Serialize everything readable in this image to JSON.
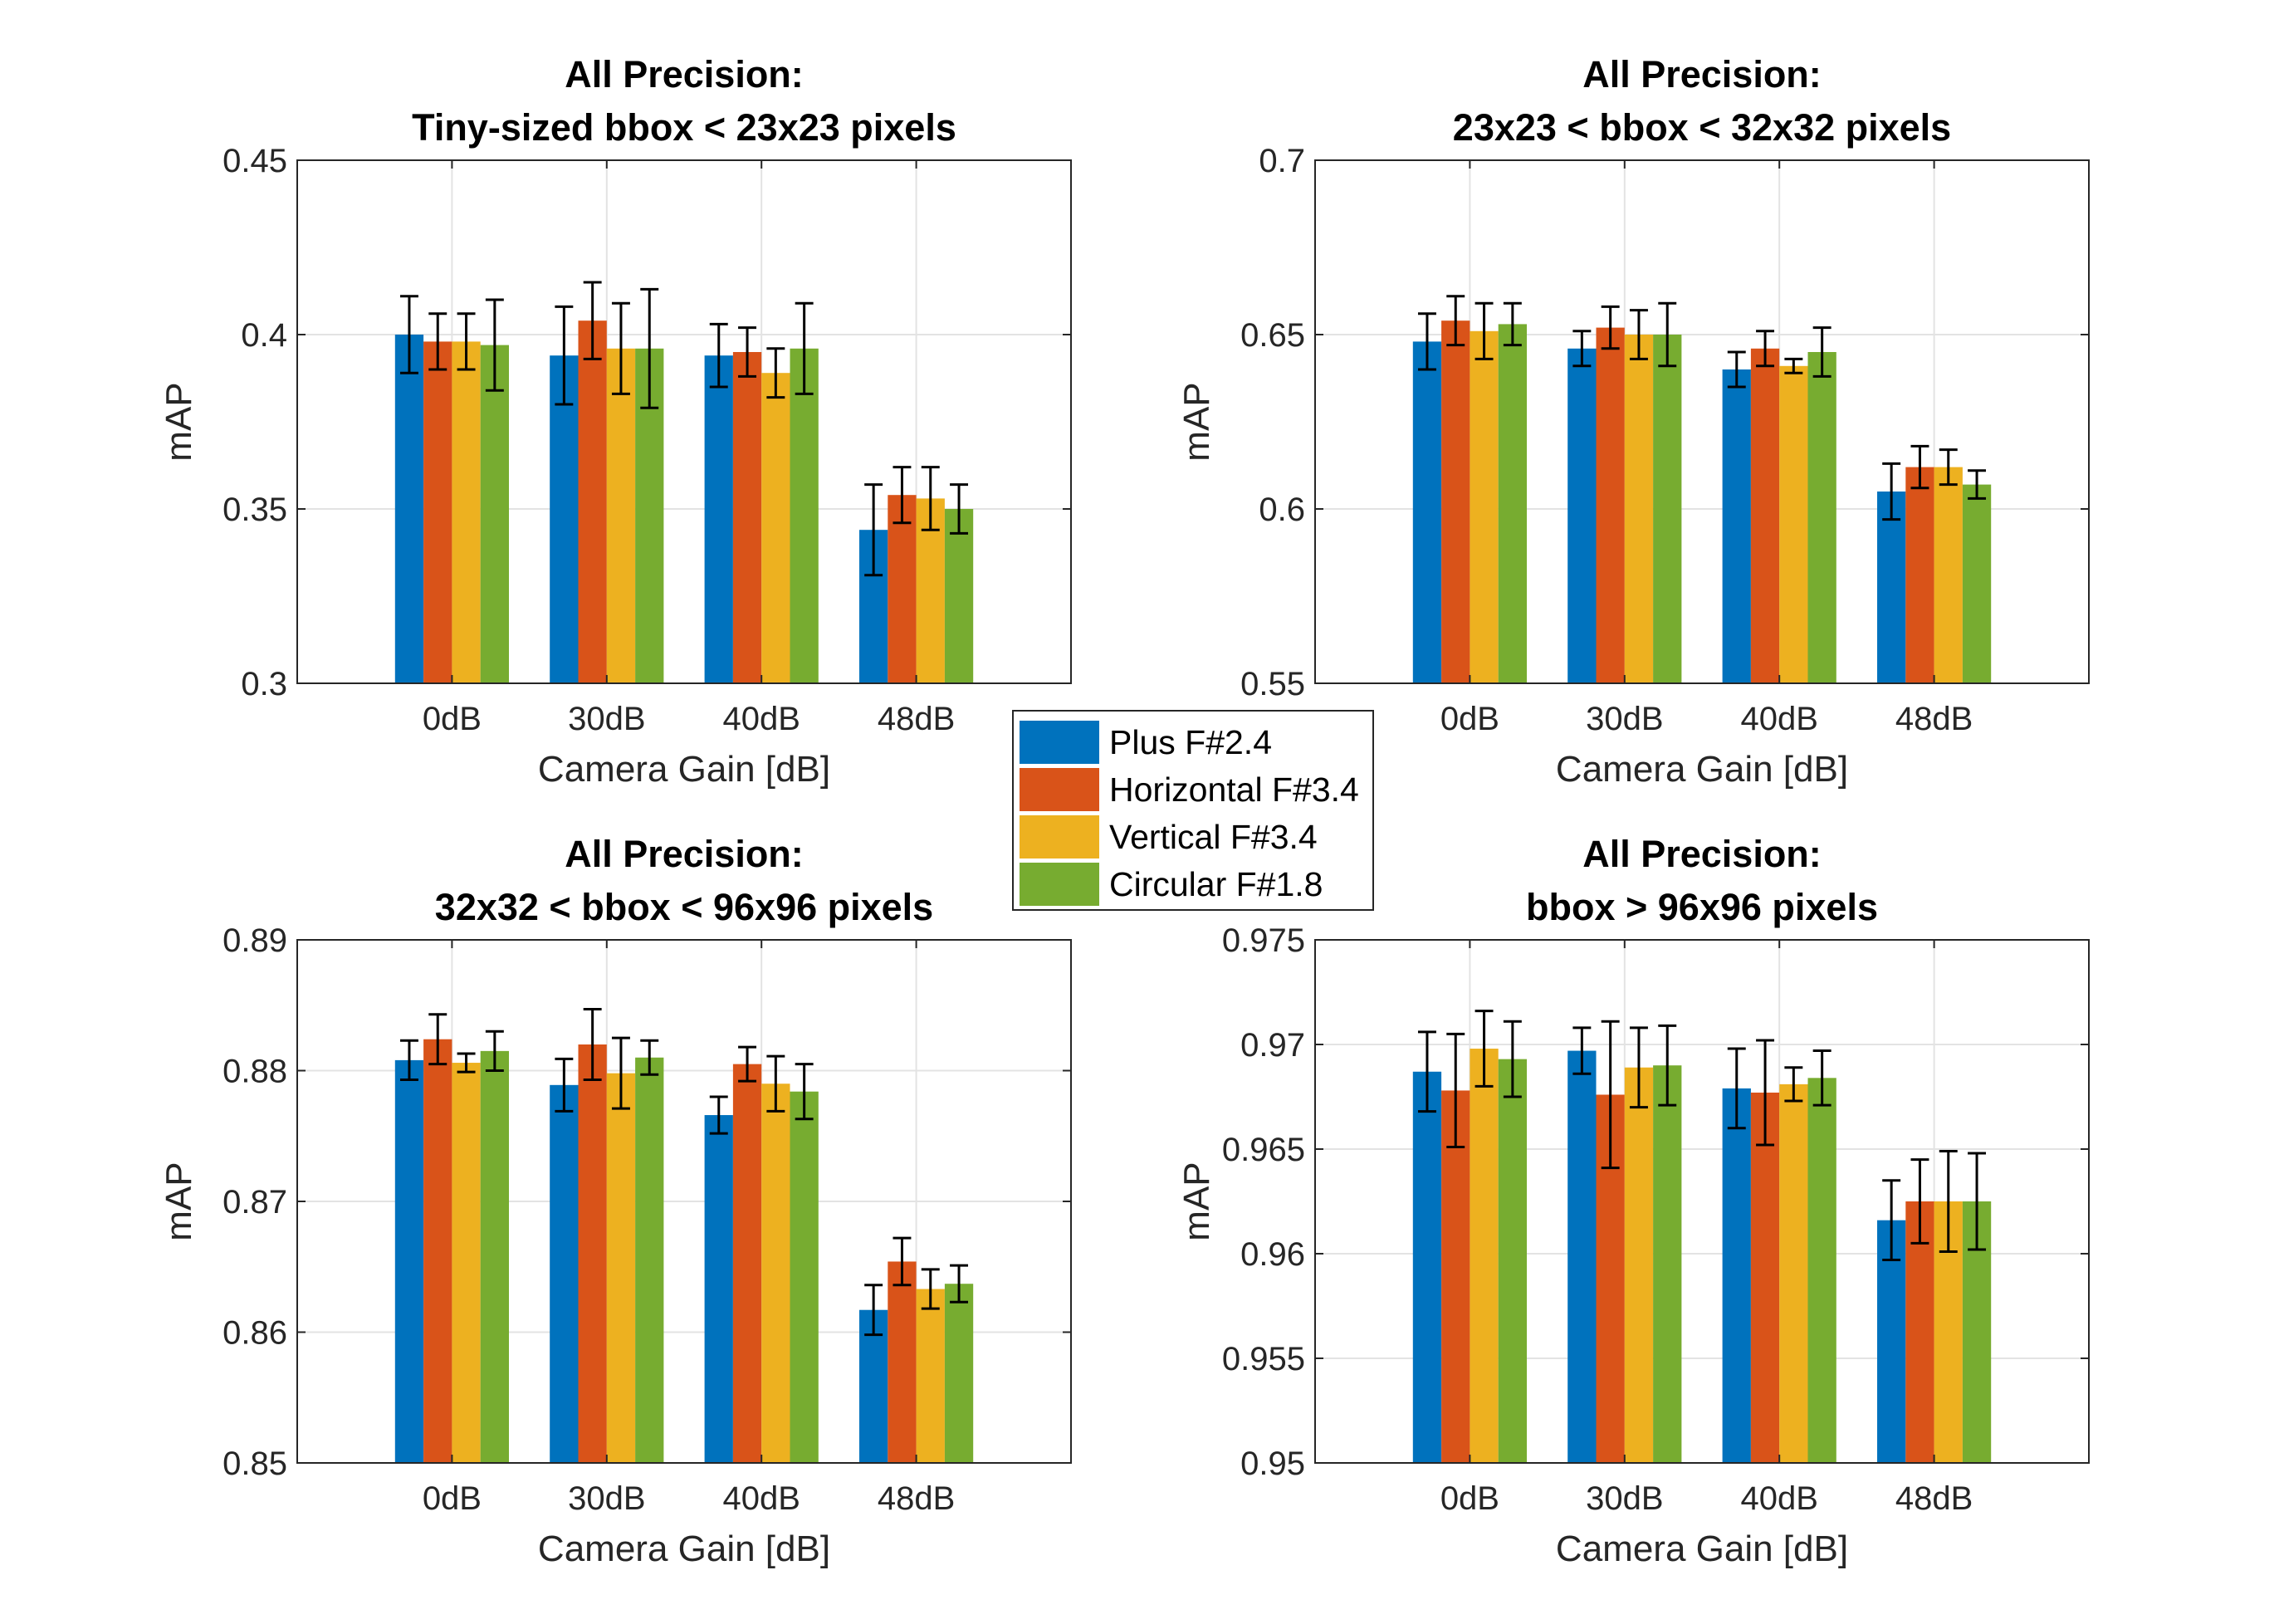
{
  "legend": [
    {
      "name": "Plus F#2.4",
      "color": "#0072BD"
    },
    {
      "name": "Horizontal F#3.4",
      "color": "#D95319"
    },
    {
      "name": "Vertical F#3.4",
      "color": "#EDB120"
    },
    {
      "name": "Circular F#1.8",
      "color": "#77AC30"
    }
  ],
  "chart_data": [
    {
      "type": "bar",
      "title": [
        "All Precision:",
        "Tiny-sized bbox < 23x23 pixels"
      ],
      "xlabel": "Camera Gain [dB]",
      "ylabel": "mAP",
      "categories": [
        "0dB",
        "30dB",
        "40dB",
        "48dB"
      ],
      "ylim": [
        0.3,
        0.45
      ],
      "yticks": [
        "0.3",
        "0.35",
        "0.4",
        "0.45"
      ],
      "grid": true,
      "series": [
        {
          "name": "Plus F#2.4",
          "values": [
            0.4,
            0.394,
            0.394,
            0.344
          ],
          "errors": [
            0.011,
            0.014,
            0.009,
            0.013
          ]
        },
        {
          "name": "Horizontal F#3.4",
          "values": [
            0.398,
            0.404,
            0.395,
            0.354
          ],
          "errors": [
            0.008,
            0.011,
            0.007,
            0.008
          ]
        },
        {
          "name": "Vertical F#3.4",
          "values": [
            0.398,
            0.396,
            0.389,
            0.353
          ],
          "errors": [
            0.008,
            0.013,
            0.007,
            0.009
          ]
        },
        {
          "name": "Circular F#1.8",
          "values": [
            0.397,
            0.396,
            0.396,
            0.35
          ],
          "errors": [
            0.013,
            0.017,
            0.013,
            0.007
          ]
        }
      ]
    },
    {
      "type": "bar",
      "title": [
        "All Precision:",
        "23x23 < bbox < 32x32 pixels"
      ],
      "xlabel": "Camera Gain [dB]",
      "ylabel": "mAP",
      "categories": [
        "0dB",
        "30dB",
        "40dB",
        "48dB"
      ],
      "ylim": [
        0.55,
        0.7
      ],
      "yticks": [
        "0.55",
        "0.6",
        "0.65",
        "0.7"
      ],
      "grid": true,
      "series": [
        {
          "name": "Plus F#2.4",
          "values": [
            0.648,
            0.646,
            0.64,
            0.605
          ],
          "errors": [
            0.008,
            0.005,
            0.005,
            0.008
          ]
        },
        {
          "name": "Horizontal F#3.4",
          "values": [
            0.654,
            0.652,
            0.646,
            0.612
          ],
          "errors": [
            0.007,
            0.006,
            0.005,
            0.006
          ]
        },
        {
          "name": "Vertical F#3.4",
          "values": [
            0.651,
            0.65,
            0.641,
            0.612
          ],
          "errors": [
            0.008,
            0.007,
            0.002,
            0.005
          ]
        },
        {
          "name": "Circular F#1.8",
          "values": [
            0.653,
            0.65,
            0.645,
            0.607
          ],
          "errors": [
            0.006,
            0.009,
            0.007,
            0.004
          ]
        }
      ]
    },
    {
      "type": "bar",
      "title": [
        "All Precision:",
        "32x32 < bbox < 96x96 pixels"
      ],
      "xlabel": "Camera Gain [dB]",
      "ylabel": "mAP",
      "categories": [
        "0dB",
        "30dB",
        "40dB",
        "48dB"
      ],
      "ylim": [
        0.85,
        0.89
      ],
      "yticks": [
        "0.85",
        "0.86",
        "0.87",
        "0.88",
        "0.89"
      ],
      "grid": true,
      "series": [
        {
          "name": "Plus F#2.4",
          "values": [
            0.8808,
            0.8789,
            0.8766,
            0.8617
          ],
          "errors": [
            0.0015,
            0.002,
            0.0014,
            0.0019
          ]
        },
        {
          "name": "Horizontal F#3.4",
          "values": [
            0.8824,
            0.882,
            0.8805,
            0.8654
          ],
          "errors": [
            0.0019,
            0.0027,
            0.0013,
            0.0018
          ]
        },
        {
          "name": "Vertical F#3.4",
          "values": [
            0.8806,
            0.8798,
            0.879,
            0.8633
          ],
          "errors": [
            0.0007,
            0.0027,
            0.0021,
            0.0015
          ]
        },
        {
          "name": "Circular F#1.8",
          "values": [
            0.8815,
            0.881,
            0.8784,
            0.8637
          ],
          "errors": [
            0.0015,
            0.0013,
            0.0021,
            0.0014
          ]
        }
      ]
    },
    {
      "type": "bar",
      "title": [
        "All Precision:",
        "bbox > 96x96 pixels"
      ],
      "xlabel": "Camera Gain [dB]",
      "ylabel": "mAP",
      "categories": [
        "0dB",
        "30dB",
        "40dB",
        "48dB"
      ],
      "ylim": [
        0.95,
        0.975
      ],
      "yticks": [
        "0.95",
        "0.955",
        "0.96",
        "0.965",
        "0.97",
        "0.975"
      ],
      "grid": true,
      "series": [
        {
          "name": "Plus F#2.4",
          "values": [
            0.9687,
            0.9697,
            0.9679,
            0.9616
          ],
          "errors": [
            0.0019,
            0.0011,
            0.0019,
            0.0019
          ]
        },
        {
          "name": "Horizontal F#3.4",
          "values": [
            0.9678,
            0.9676,
            0.9677,
            0.9625
          ],
          "errors": [
            0.0027,
            0.0035,
            0.0025,
            0.002
          ]
        },
        {
          "name": "Vertical F#3.4",
          "values": [
            0.9698,
            0.9689,
            0.9681,
            0.9625
          ],
          "errors": [
            0.0018,
            0.0019,
            0.0008,
            0.0024
          ]
        },
        {
          "name": "Circular F#1.8",
          "values": [
            0.9693,
            0.969,
            0.9684,
            0.9625
          ],
          "errors": [
            0.0018,
            0.0019,
            0.0013,
            0.0023
          ]
        }
      ]
    }
  ]
}
